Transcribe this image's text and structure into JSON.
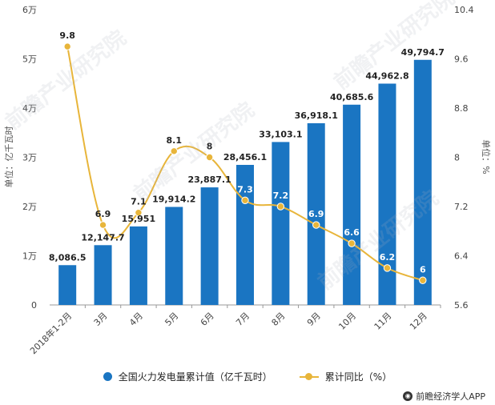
{
  "chart_data": {
    "type": "bar+line",
    "categories": [
      "2018年1-2月",
      "3月",
      "4月",
      "5月",
      "6月",
      "7月",
      "8月",
      "9月",
      "10月",
      "11月",
      "12月"
    ],
    "series": [
      {
        "name": "全国火力发电量累计值（亿千瓦时）",
        "type": "bar",
        "axis": "left",
        "values": [
          8086.5,
          12147.7,
          15951,
          19914.2,
          23887.1,
          28456.1,
          33103.1,
          36918.1,
          40685.6,
          44962.8,
          49794.7
        ],
        "labels": [
          "8,086.5",
          "12,147.7",
          "15,951",
          "19,914.2",
          "23,887.1",
          "28,456.1",
          "33,103.1",
          "36,918.1",
          "40,685.6",
          "44,962.8",
          "49,794.7"
        ],
        "color": "#1a75c2"
      },
      {
        "name": "累计同比（%）",
        "type": "line",
        "axis": "right",
        "values": [
          9.8,
          6.9,
          7.1,
          8.1,
          8,
          7.3,
          7.2,
          6.9,
          6.6,
          6.2,
          6
        ],
        "labels": [
          "9.8",
          "6.9",
          "7.1",
          "8.1",
          "8",
          "7.3",
          "7.2",
          "6.9",
          "6.6",
          "6.2",
          "6"
        ],
        "color": "#e8b53a"
      }
    ],
    "left_axis": {
      "label": "单位：亿千瓦时",
      "ylim": [
        0,
        60000
      ],
      "ticks": [
        0,
        10000,
        20000,
        30000,
        40000,
        50000,
        60000
      ],
      "tick_labels": [
        "0",
        "1万",
        "2万",
        "3万",
        "4万",
        "5万",
        "6万"
      ]
    },
    "right_axis": {
      "label": "单位：%",
      "ylim": [
        5.6,
        10.4
      ],
      "ticks": [
        5.6,
        6.4,
        7.2,
        8,
        8.8,
        9.6,
        10.4
      ],
      "tick_labels": [
        "5.6",
        "6.4",
        "7.2",
        "8",
        "8.8",
        "9.6",
        "10.4"
      ]
    },
    "grid": false,
    "legend_position": "bottom"
  },
  "legend": {
    "bar_label": "全国火力发电量累计值（亿千瓦时）",
    "line_label": "累计同比（%）"
  },
  "brand": {
    "text": "前瞻经济学人APP"
  },
  "watermark": {
    "text": "前瞻产业研究院"
  }
}
